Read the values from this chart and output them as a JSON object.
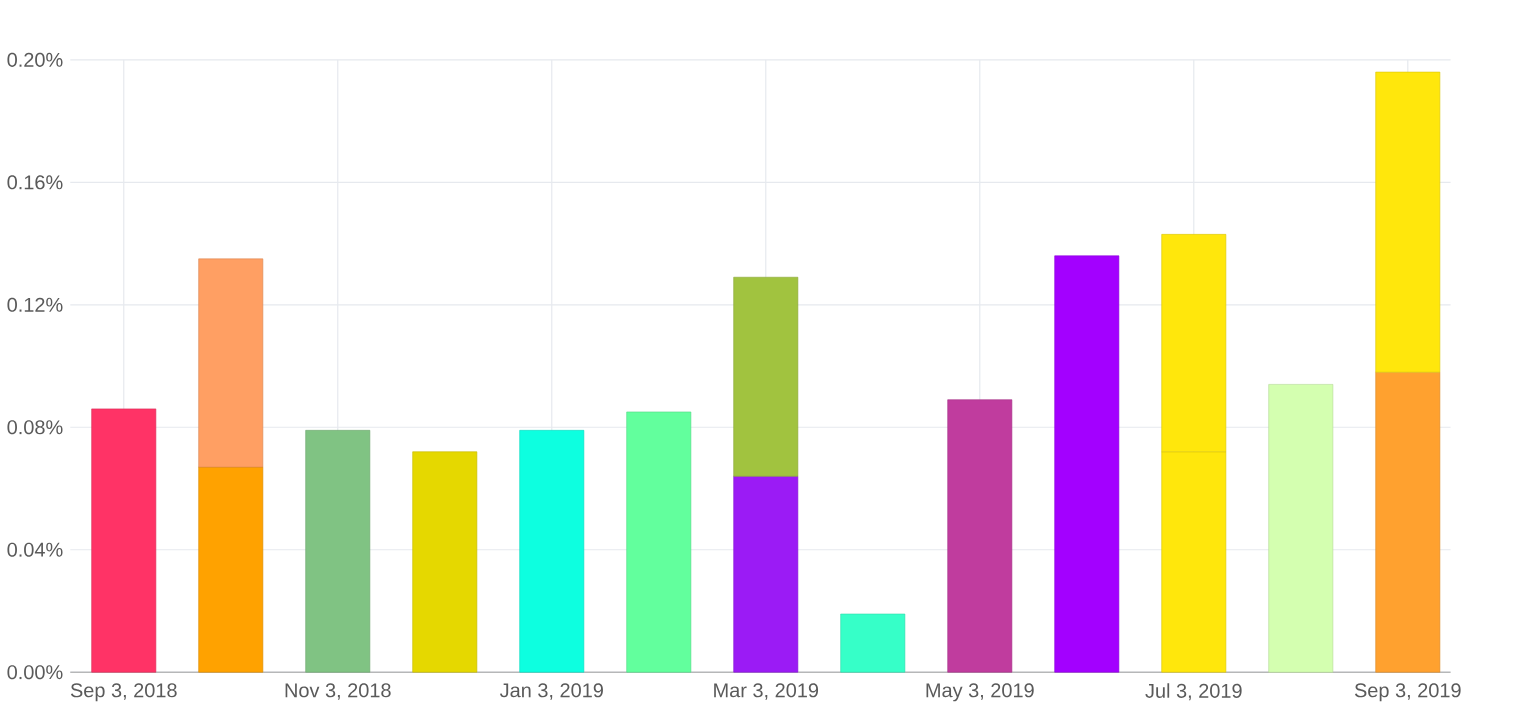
{
  "chart_data": {
    "type": "bar",
    "stacked": true,
    "categories": [
      "Sep 3, 2018",
      null,
      "Nov 3, 2018",
      null,
      "Jan 3, 2019",
      null,
      "Mar 3, 2019",
      null,
      "May 3, 2019",
      null,
      "Jul 3, 2019",
      null,
      "Sep 3, 2019"
    ],
    "series": [
      {
        "colors": [
          "#ff3366",
          "#ffa200",
          "#80c383",
          "#e5d800",
          "#0dffe0",
          "#62ff9d",
          "#9b1bf5",
          "#36ffc8",
          "#c03c9e",
          "#a300ff",
          "#ffe70c",
          "#d4ffb0",
          "#ffa12f"
        ],
        "values": [
          0.086,
          0.067,
          0.079,
          0.072,
          0.079,
          0.085,
          0.064,
          0.019,
          0.089,
          0.136,
          0.072,
          0.094,
          0.098
        ]
      },
      {
        "colors": [
          null,
          "#ff9f63",
          null,
          null,
          null,
          null,
          "#a1c33f",
          null,
          null,
          null,
          "#ffe70c",
          null,
          "#ffe70c"
        ],
        "values": [
          null,
          0.068,
          null,
          null,
          null,
          null,
          0.065,
          null,
          null,
          null,
          0.071,
          null,
          0.098
        ]
      }
    ],
    "ylim": [
      0,
      0.2
    ],
    "yticks": [
      {
        "value": 0,
        "label": "0.00%"
      },
      {
        "value": 0.04,
        "label": "0.04%"
      },
      {
        "value": 0.08,
        "label": "0.08%"
      },
      {
        "value": 0.12,
        "label": "0.12%"
      },
      {
        "value": 0.16,
        "label": "0.16%"
      },
      {
        "value": 0.2,
        "label": "0.20%"
      }
    ],
    "grid": true
  }
}
